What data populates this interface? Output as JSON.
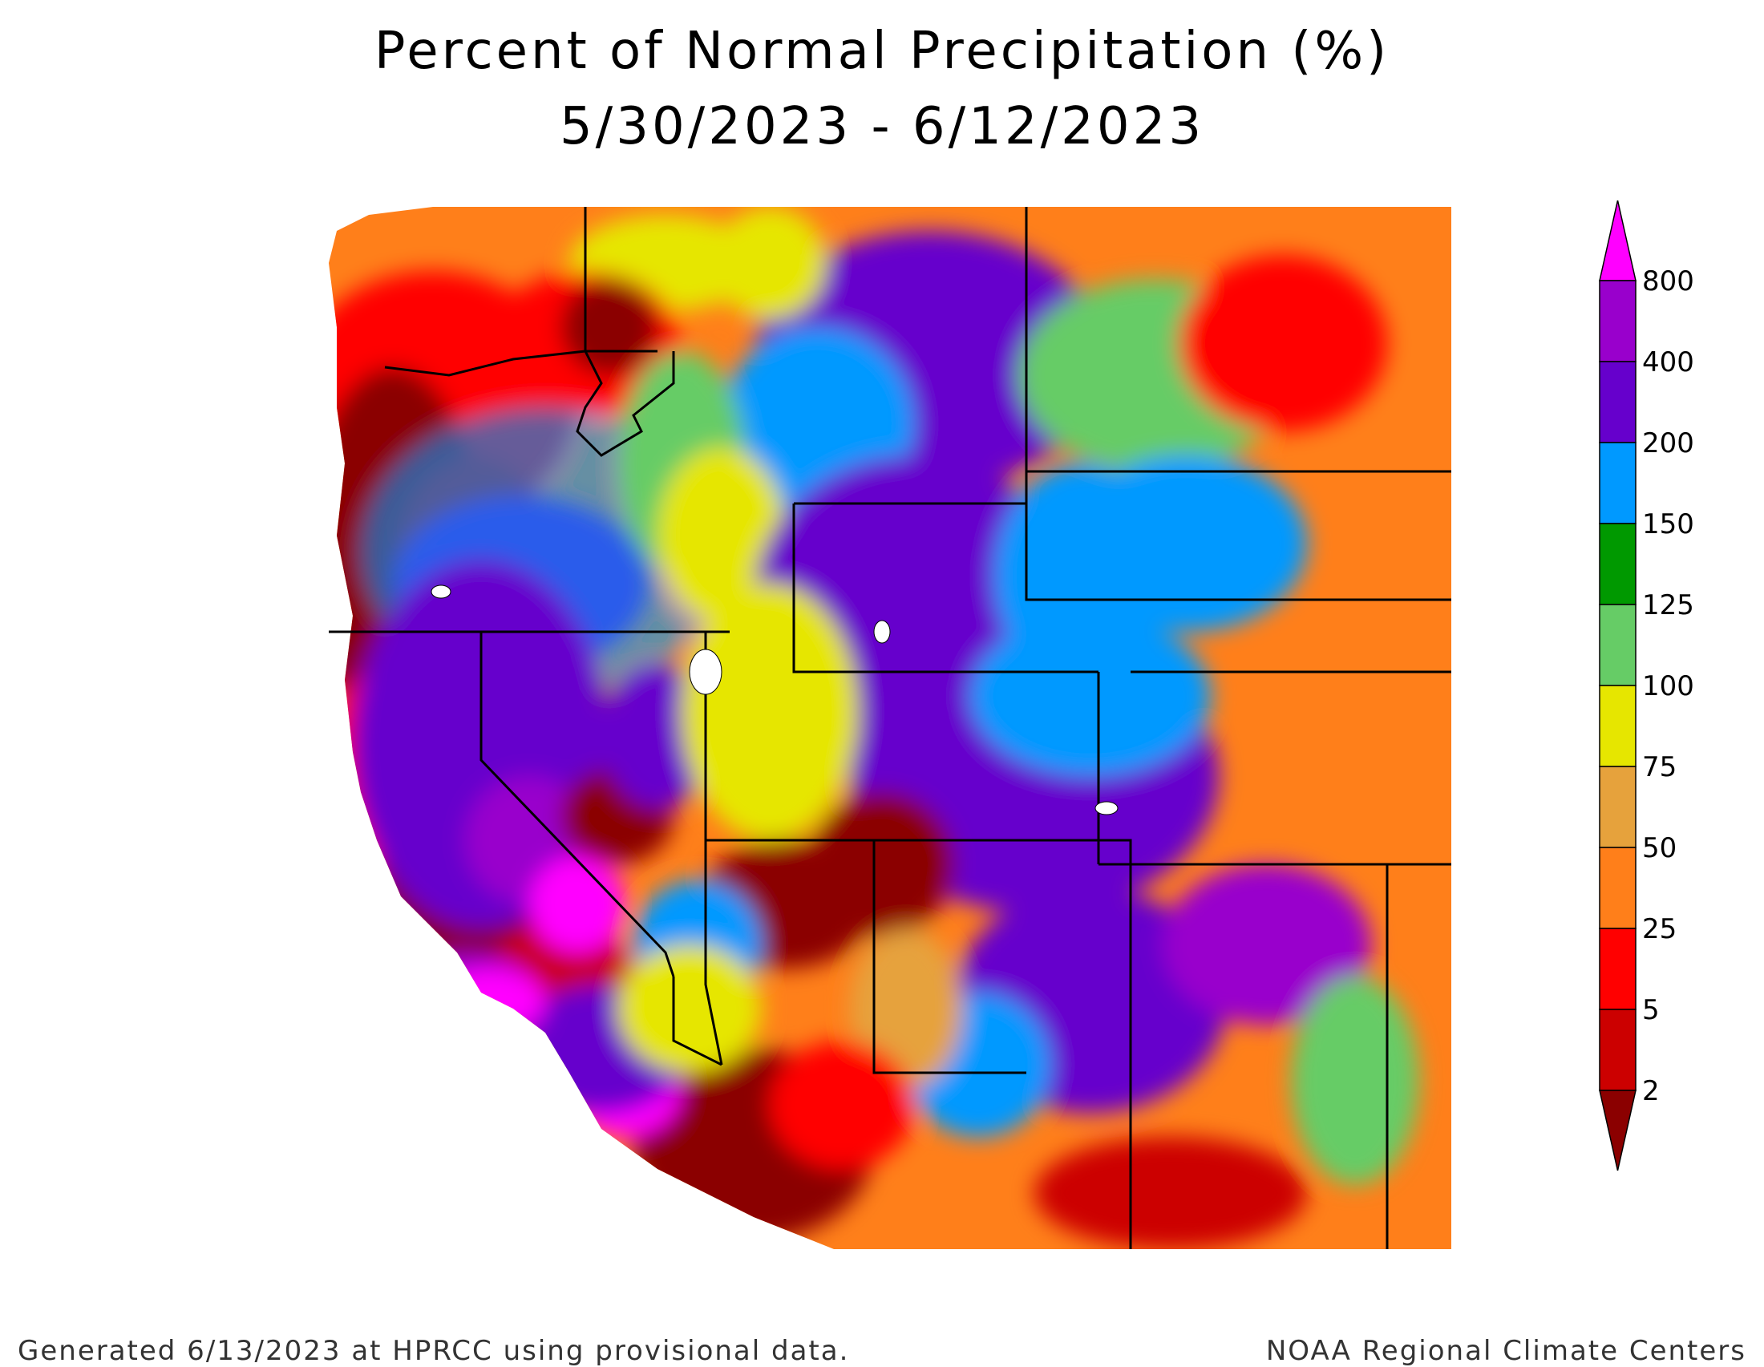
{
  "title": "Percent of Normal Precipitation (%)",
  "subtitle": "5/30/2023 - 6/12/2023",
  "footer": {
    "left": "Generated 6/13/2023 at HPRCC using provisional data.",
    "right": "NOAA Regional Climate Centers"
  },
  "legend": {
    "labels": [
      "800",
      "400",
      "200",
      "150",
      "125",
      "100",
      "75",
      "50",
      "25",
      "5",
      "2"
    ],
    "colors": [
      "#ff00ff",
      "#9900cc",
      "#6600cc",
      "#0099ff",
      "#009900",
      "#66cc66",
      "#e6e600",
      "#e6a23c",
      "#ff7f1a",
      "#ff0000",
      "#cc0000",
      "#8b0000"
    ]
  },
  "map": {
    "region": "Western United States",
    "palette": {
      "dark_red": "#8b0000",
      "red2": "#cc0000",
      "red": "#ff0000",
      "orange": "#ff7f1a",
      "light_orange": "#e6a23c",
      "yellow": "#e6e600",
      "light_green": "#66cc66",
      "green": "#009900",
      "blue": "#0099ff",
      "purple": "#6600cc",
      "violet": "#9900cc",
      "magenta": "#ff00ff"
    }
  }
}
